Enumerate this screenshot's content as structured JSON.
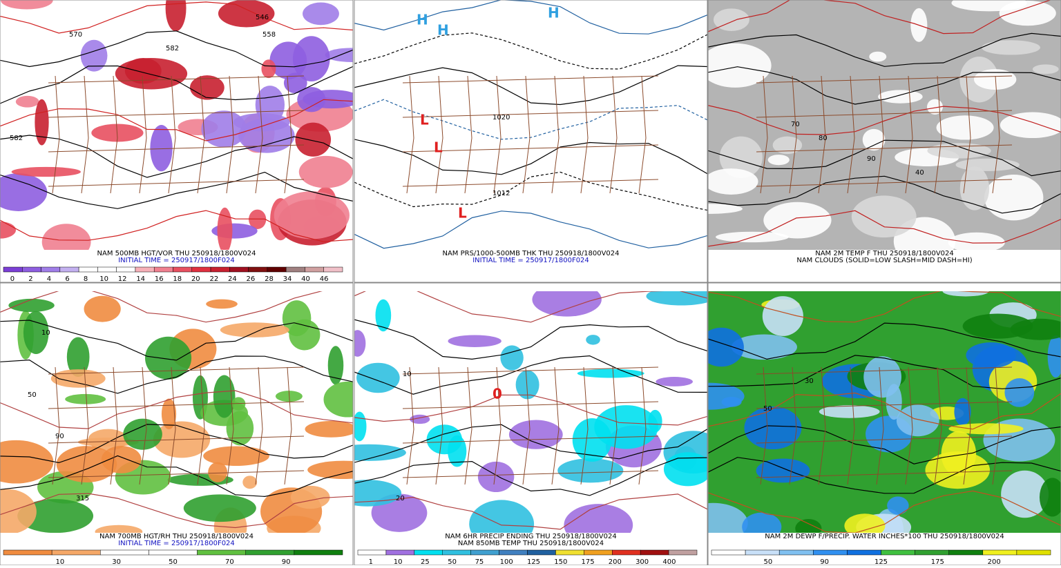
{
  "panels": [
    {
      "captions": [
        "NAM 500MB HGT/VOR THU 250918/1800V024",
        "INITIAL TIME = 250917/1800F024"
      ],
      "colorbar": {
        "colors": [
          "#7b3fd6",
          "#8e5ee0",
          "#a07de8",
          "#c3b0f0",
          "#ffffff",
          "#ffffff",
          "#ffffff",
          "#f7b0b8",
          "#f08090",
          "#e85060",
          "#e03040",
          "#c82030",
          "#a01020",
          "#801010",
          "#600000",
          "#a08080",
          "#d0a0a0",
          "#f0c0c8"
        ],
        "labels": [
          0,
          2,
          4,
          6,
          8,
          10,
          12,
          14,
          16,
          18,
          20,
          22,
          24,
          26,
          28,
          34,
          40,
          46
        ]
      },
      "map_labels": [
        "570",
        "582",
        "558",
        "546",
        "582"
      ]
    },
    {
      "captions": [
        "NAM PRS/1000-500MB THK THU 250918/1800V024",
        "INITIAL TIME = 250917/1800F024"
      ],
      "map_labels": [
        "H",
        "H",
        "H",
        "L",
        "L",
        "L",
        "1012",
        "1020"
      ]
    },
    {
      "captions": [
        "NAM 2M TEMP F THU 250918/1800V024",
        "NAM CLOUDS (SOLID=LOW SLASH=MID DASH=HI)"
      ],
      "map_labels": [
        "70",
        "80",
        "90",
        "40"
      ]
    },
    {
      "captions": [
        "NAM 700MB HGT/RH THU 250918/1800V024",
        "INITIAL TIME = 250917/1800F024"
      ],
      "colorbar": {
        "colors": [
          "#f08c40",
          "#f5a868",
          "#ffffff",
          "#ffffff",
          "#60c040",
          "#30a030",
          "#108010"
        ],
        "labels": [
          10,
          30,
          50,
          70,
          90
        ]
      },
      "map_labels": [
        "50",
        "90",
        "315",
        "10"
      ]
    },
    {
      "captions": [
        "NAM 6HR PRECIP ENDING THU 250918/1800V024",
        "NAM 850MB TEMP THU 250918/1800V024"
      ],
      "colorbar": {
        "colors": [
          "#ffffff",
          "#a070e0",
          "#00e0f0",
          "#30c0e0",
          "#40a0d0",
          "#4080c0",
          "#2060a0",
          "#f0e030",
          "#f0a020",
          "#e03020",
          "#a01010",
          "#c0a0a0"
        ],
        "labels": [
          1,
          10,
          25,
          50,
          75,
          100,
          125,
          150,
          175,
          200,
          300,
          400
        ]
      },
      "map_labels": [
        "0",
        "10",
        "20"
      ]
    },
    {
      "captions": [
        "NAM 2M DEWP F/PRECIP. WATER INCHES*100 THU 250918/1800V024"
      ],
      "colorbar": {
        "colors": [
          "#ffffff",
          "#c8e0f8",
          "#80c0f0",
          "#3090f0",
          "#1070e0",
          "#40c040",
          "#30a030",
          "#108010",
          "#f0f020",
          "#e0e000"
        ],
        "labels": [
          50,
          90,
          125,
          175,
          200
        ]
      },
      "map_labels": [
        "50",
        "30"
      ]
    }
  ]
}
